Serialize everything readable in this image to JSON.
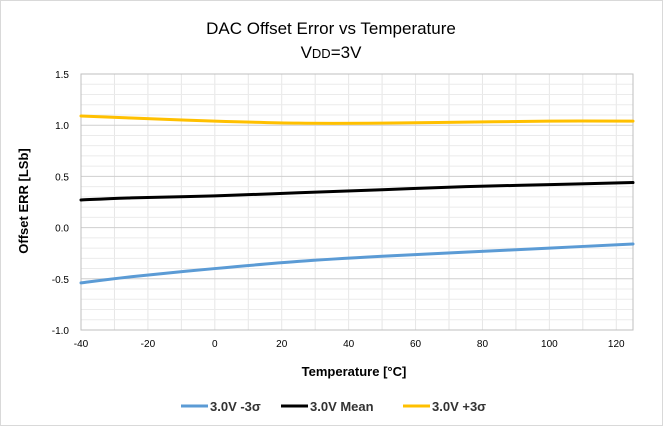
{
  "chart_data": {
    "type": "line",
    "title": "DAC Offset Error vs Temperature",
    "subtitle": "VDD=3V",
    "subtitle_parts": {
      "main": "V",
      "sub": "DD",
      "rest": "=3V"
    },
    "xlabel": "Temperature [°C]",
    "ylabel": "Offset ERR [LSb]",
    "xlim": [
      -40,
      125
    ],
    "ylim": [
      -1.0,
      1.5
    ],
    "xticks": [
      -40,
      -20,
      0,
      20,
      40,
      60,
      80,
      100,
      120
    ],
    "xtick_labels": [
      "-40",
      "-20",
      "0",
      "20",
      "40",
      "60",
      "80",
      "100",
      "120"
    ],
    "yticks": [
      -1.0,
      -0.5,
      0.0,
      0.5,
      1.0,
      1.5
    ],
    "ytick_labels": [
      "-1.0",
      "-0.5",
      "0.0",
      "0.5",
      "1.0",
      "1.5"
    ],
    "legend_position": "bottom",
    "grid": true,
    "series": [
      {
        "name": "3.0V -3σ",
        "color": "#5b9bd5",
        "x": [
          -40,
          -25,
          0,
          25,
          50,
          75,
          100,
          125
        ],
        "values": [
          -0.54,
          -0.48,
          -0.4,
          -0.33,
          -0.28,
          -0.24,
          -0.2,
          -0.16
        ]
      },
      {
        "name": "3.0V Mean",
        "color": "#000000",
        "x": [
          -40,
          -25,
          0,
          25,
          50,
          75,
          100,
          125
        ],
        "values": [
          0.27,
          0.29,
          0.31,
          0.34,
          0.37,
          0.4,
          0.42,
          0.44
        ]
      },
      {
        "name": "3.0V +3σ",
        "color": "#ffc000",
        "x": [
          -40,
          -25,
          0,
          25,
          50,
          75,
          100,
          125
        ],
        "values": [
          1.09,
          1.07,
          1.04,
          1.02,
          1.02,
          1.03,
          1.04,
          1.04
        ]
      }
    ]
  }
}
